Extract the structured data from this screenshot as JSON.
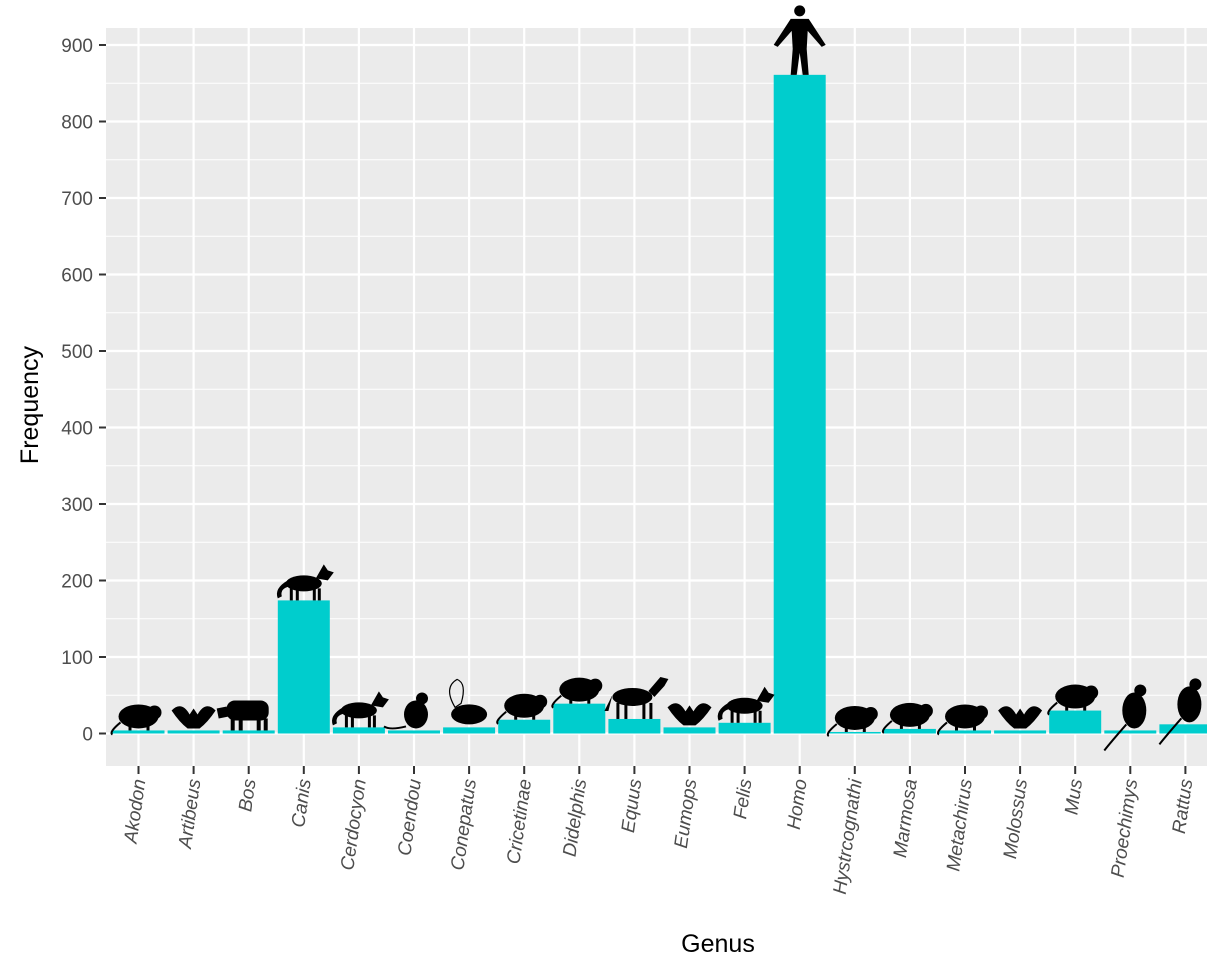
{
  "chart_data": {
    "type": "bar",
    "xlabel": "Genus",
    "ylabel": "Frequency",
    "ylim": [
      -40,
      905
    ],
    "yticks": [
      0,
      100,
      200,
      300,
      400,
      500,
      600,
      700,
      800,
      900
    ],
    "grid": true,
    "categories": [
      "Akodon",
      "Artibeus",
      "Bos",
      "Canis",
      "Cerdocyon",
      "Coendou",
      "Conepatus",
      "Cricetinae",
      "Didelphis",
      "Equus",
      "Eumops",
      "Felis",
      "Homo",
      "Hystrcognathi",
      "Marmosa",
      "Metachirus",
      "Molossus",
      "Mus",
      "Proechimys",
      "Rattus"
    ],
    "values": [
      4,
      4,
      4,
      174,
      8,
      4,
      8,
      18,
      39,
      19,
      8,
      14,
      861,
      2,
      6,
      4,
      4,
      30,
      4,
      12
    ],
    "colors": {
      "bar": "#00CDCD",
      "panel": "#EBEBEB",
      "grid": "#FFFFFF",
      "silhouette": "#000000"
    },
    "silhouettes": [
      "rodent-silhouette",
      "bat-silhouette",
      "bovine-silhouette",
      "canid-silhouette",
      "fox-silhouette",
      "porcupine-silhouette",
      "skunk-silhouette",
      "rodent-silhouette",
      "opossum-silhouette",
      "horse-silhouette",
      "bat-silhouette",
      "cat-silhouette",
      "human-silhouette",
      "rodent-silhouette",
      "marsupial-silhouette",
      "marsupial-silhouette",
      "bat-silhouette",
      "mouse-silhouette",
      "rat-silhouette",
      "rat-silhouette"
    ]
  }
}
